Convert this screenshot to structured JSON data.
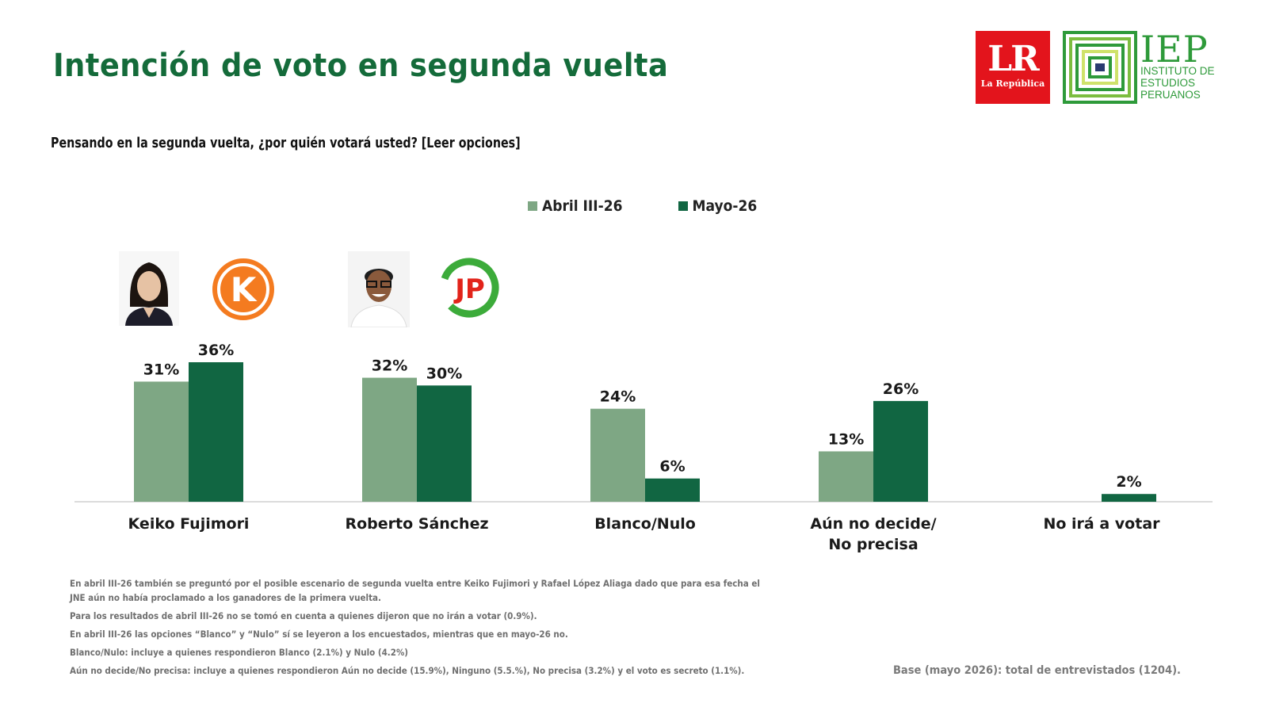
{
  "header": {
    "title": "Intención de voto en segunda vuelta",
    "subtitle": "Pensando en la segunda vuelta, ¿por quién votará usted? [Leer opciones]"
  },
  "logos": {
    "lr": {
      "big": "LR",
      "small": "La República"
    },
    "iep": {
      "big": "IEP",
      "line1": "INSTITUTO DE",
      "line2": "ESTUDIOS",
      "line3": "PERUANOS"
    }
  },
  "colors": {
    "abril": "#7ea784",
    "mayo": "#116642",
    "title": "#146b3a",
    "axis": "#d0d0d0"
  },
  "chart_data": {
    "type": "bar",
    "categories": [
      "Keiko Fujimori",
      "Roberto Sánchez",
      "Blanco/Nulo",
      "Aún no decide/ No precisa",
      "No irá a votar"
    ],
    "series": [
      {
        "name": "Abril III-26",
        "values": [
          31,
          32,
          24,
          13,
          null
        ],
        "labels": [
          "31%",
          "32%",
          "24%",
          "13%",
          ""
        ]
      },
      {
        "name": "Mayo-26",
        "values": [
          36,
          30,
          6,
          26,
          2
        ],
        "labels": [
          "36%",
          "30%",
          "6%",
          "26%",
          "2%"
        ]
      }
    ],
    "legend_position": "top-center",
    "grid": false,
    "ylim": [
      0,
      36
    ]
  },
  "notes": [
    "En abril III-26 también se preguntó por el posible escenario de segunda vuelta entre Keiko Fujimori y Rafael López Aliaga dado que para esa fecha el JNE aún no había proclamado a los ganadores de la primera vuelta.",
    "Para los resultados de abril III-26 no se tomó en cuenta a quienes dijeron que no irán a votar (0.9%).",
    "En abril III-26 las opciones “Blanco” y “Nulo” sí se leyeron a los encuestados, mientras que en mayo-26 no.",
    "Blanco/Nulo: incluye a quienes respondieron Blanco (2.1%) y Nulo (4.2%)",
    "Aún no decide/No precisa: incluye a quienes respondieron Aún no decide (15.9%), Ninguno (5.5.%), No precisa (3.2%) y el voto es secreto (1.1%)."
  ],
  "base_note": "Base (mayo 2026): total de entrevistados (1204).",
  "icons": {
    "fuerza_popular": "fuerza-popular-logo-icon",
    "juntos_peru": "juntos-por-el-peru-logo-icon",
    "fujimori_photo": "keiko-fujimori-photo",
    "sanchez_photo": "roberto-sanchez-photo"
  },
  "party_logos": {
    "fp_letter": "K",
    "jp_letters": "JP"
  }
}
